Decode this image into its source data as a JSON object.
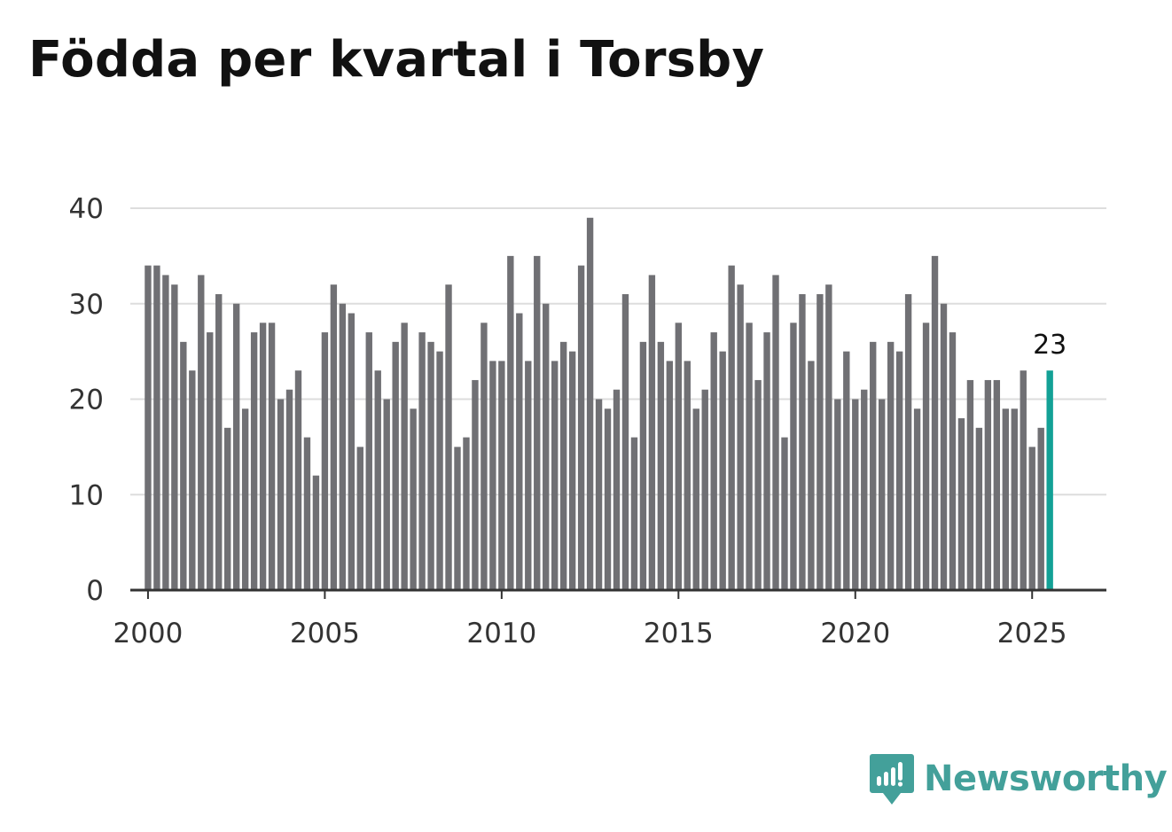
{
  "title": "Födda per kvartal i Torsby",
  "brand": {
    "name": "Newsworthy",
    "color": "#43a09a",
    "icon": "bar-chart-speech-bubble-icon"
  },
  "colors": {
    "bar": "#707074",
    "highlight": "#13a196",
    "grid": "#dddddd",
    "axis": "#333333"
  },
  "chart_data": {
    "type": "bar",
    "title": "Födda per kvartal i Torsby",
    "xlabel": "",
    "ylabel": "",
    "x_start_year": 2000,
    "periods_per_year": 4,
    "xlim": [
      1999.5,
      2027.1
    ],
    "ylim": [
      0,
      40
    ],
    "yticks": [
      0,
      10,
      20,
      30,
      40
    ],
    "xticks": [
      2000,
      2005,
      2010,
      2015,
      2020,
      2025
    ],
    "grid": true,
    "values": [
      34,
      34,
      33,
      32,
      26,
      23,
      33,
      27,
      31,
      17,
      30,
      19,
      27,
      28,
      28,
      20,
      21,
      23,
      16,
      12,
      27,
      32,
      30,
      29,
      15,
      27,
      23,
      20,
      26,
      28,
      19,
      27,
      26,
      25,
      32,
      15,
      16,
      22,
      28,
      24,
      24,
      35,
      29,
      24,
      35,
      30,
      24,
      26,
      25,
      34,
      39,
      20,
      19,
      21,
      31,
      16,
      26,
      33,
      26,
      24,
      28,
      24,
      19,
      21,
      27,
      25,
      34,
      32,
      28,
      22,
      27,
      33,
      16,
      28,
      31,
      24,
      31,
      32,
      20,
      25,
      20,
      21,
      26,
      20,
      26,
      25,
      31,
      19,
      28,
      35,
      30,
      27,
      18,
      22,
      17,
      22,
      22,
      19,
      19,
      23,
      15,
      17,
      23
    ],
    "highlight_index": 102,
    "highlight_label": "23"
  }
}
